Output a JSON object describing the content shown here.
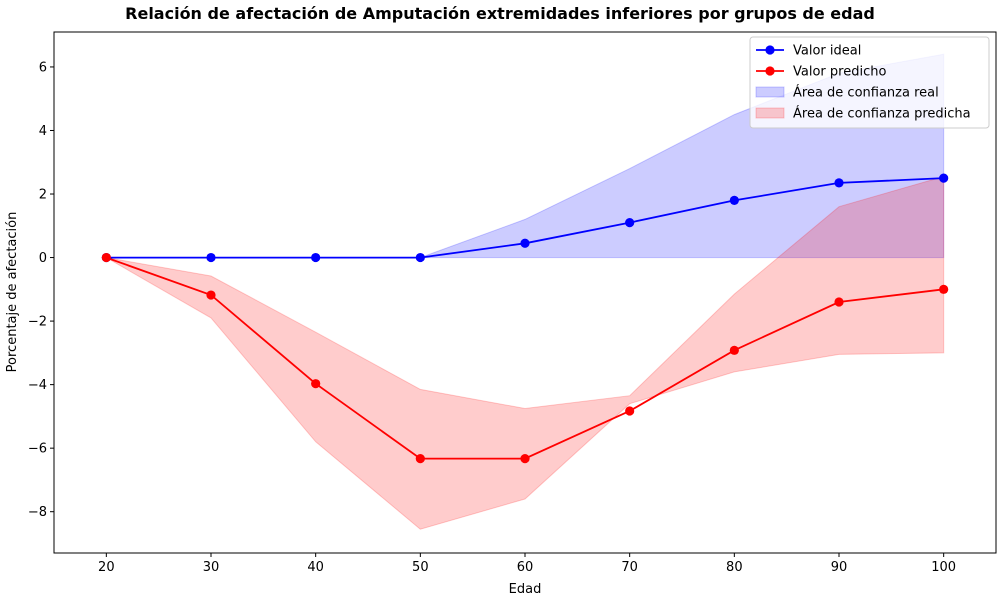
{
  "chart_data": {
    "type": "line",
    "title": "Relación de afectación de Amputación extremidades inferiores por grupos de edad",
    "xlabel": "Edad",
    "ylabel": "Porcentaje de afectación",
    "x": [
      20,
      30,
      40,
      50,
      60,
      70,
      80,
      90,
      100
    ],
    "xlim": [
      15,
      105
    ],
    "ylim": [
      -9.3,
      7.1
    ],
    "xticks": [
      20,
      30,
      40,
      50,
      60,
      70,
      80,
      90,
      100
    ],
    "yticks": [
      -8,
      -6,
      -4,
      -2,
      0,
      2,
      4,
      6
    ],
    "ytick_labels": [
      "−8",
      "−6",
      "−4",
      "−2",
      "0",
      "2",
      "4",
      "6"
    ],
    "grid": false,
    "legend_position": "top-right",
    "series": [
      {
        "name": "Valor ideal",
        "color": "#0000ff",
        "marker": "circle",
        "values": [
          0,
          0,
          0,
          0,
          0.45,
          1.1,
          1.8,
          2.35,
          2.5
        ]
      },
      {
        "name": "Valor predicho",
        "color": "#ff0000",
        "marker": "circle",
        "values": [
          0,
          -1.18,
          -3.97,
          -6.33,
          -6.33,
          -4.83,
          -2.92,
          -1.4,
          -1.0
        ]
      }
    ],
    "bands": [
      {
        "name": "Área de confianza real",
        "color": "#0000ff",
        "lower": [
          0,
          0,
          0,
          0,
          0,
          0,
          0,
          0,
          0
        ],
        "upper": [
          0,
          0,
          0,
          0,
          1.2,
          2.8,
          4.5,
          5.8,
          6.4
        ]
      },
      {
        "name": "Área de confianza predicha",
        "color": "#ff0000",
        "lower": [
          0,
          -1.9,
          -5.8,
          -8.55,
          -7.6,
          -4.6,
          -3.6,
          -3.05,
          -3.0
        ],
        "upper": [
          0,
          -0.58,
          -2.35,
          -4.15,
          -4.75,
          -4.35,
          -1.15,
          1.6,
          2.55
        ]
      }
    ]
  }
}
